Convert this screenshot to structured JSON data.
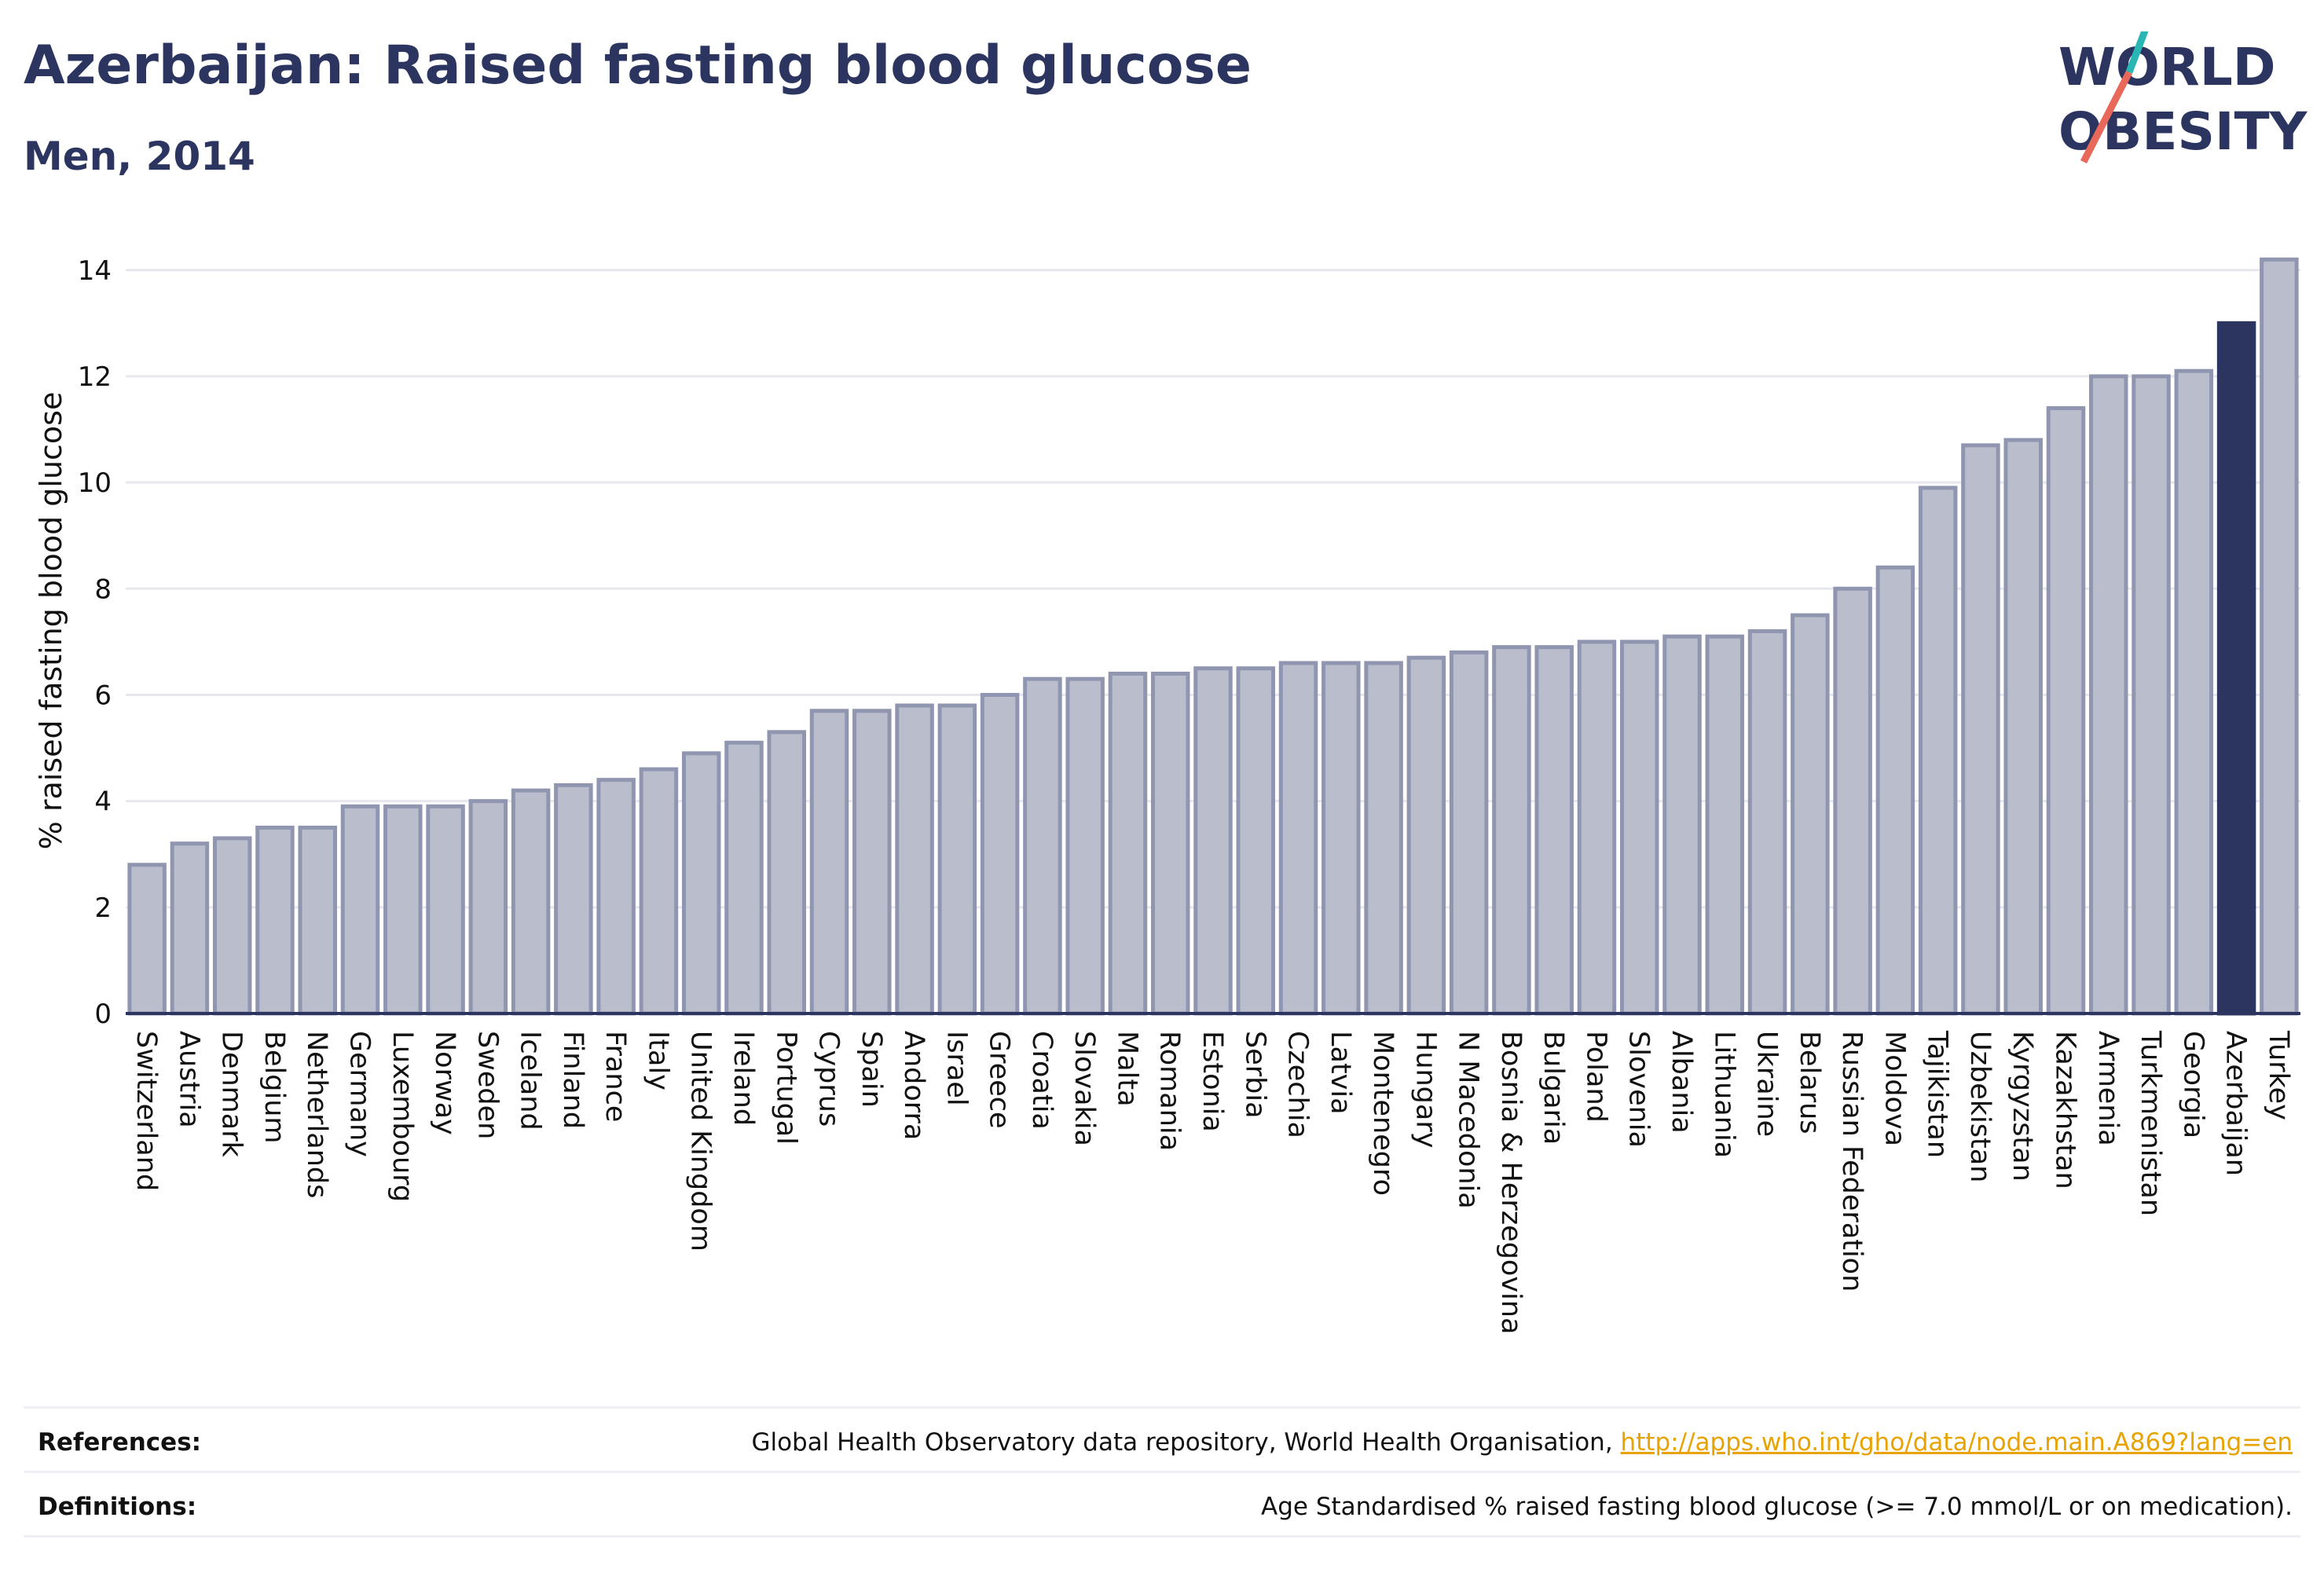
{
  "header": {
    "title": "Azerbaijan: Raised fasting blood glucose",
    "subtitle": "Men, 2014"
  },
  "logo": {
    "line1": "WORLD",
    "line2": "OBESITY"
  },
  "footer": {
    "references_label": "References:",
    "references_text": "Global Health Observatory data repository, World Health Organisation, ",
    "references_link": "http://apps.who.int/gho/data/node.main.A869?lang=en",
    "definitions_label": "Definitions:",
    "definitions_text": "Age Standardised % raised fasting blood glucose (>= 7.0 mmol/L or on medication)."
  },
  "colors": {
    "bar_fill": "#b9bdcc",
    "bar_stroke": "#9096b0",
    "highlight": "#2b3560",
    "grid": "#e6e8ee",
    "axis_line": "#2b3560",
    "logo_teal": "#2ab7b3",
    "logo_coral": "#e8685a"
  },
  "chart_data": {
    "type": "bar",
    "title": "Azerbaijan: Raised fasting blood glucose",
    "subtitle": "Men, 2014",
    "xlabel": "",
    "ylabel": "% raised fasting blood glucose",
    "ylim": [
      0,
      14.5
    ],
    "yticks": [
      0,
      2,
      4,
      6,
      8,
      10,
      12,
      14
    ],
    "grid": true,
    "highlight_category": "Azerbaijan",
    "categories": [
      "Switzerland",
      "Austria",
      "Denmark",
      "Belgium",
      "Netherlands",
      "Germany",
      "Luxembourg",
      "Norway",
      "Sweden",
      "Iceland",
      "Finland",
      "France",
      "Italy",
      "United Kingdom",
      "Ireland",
      "Portugal",
      "Cyprus",
      "Spain",
      "Andorra",
      "Israel",
      "Greece",
      "Croatia",
      "Slovakia",
      "Malta",
      "Romania",
      "Estonia",
      "Serbia",
      "Czechia",
      "Latvia",
      "Montenegro",
      "Hungary",
      "N Macedonia",
      "Bosnia & Herzegovina",
      "Bulgaria",
      "Poland",
      "Slovenia",
      "Albania",
      "Lithuania",
      "Ukraine",
      "Belarus",
      "Russian Federation",
      "Moldova",
      "Tajikistan",
      "Uzbekistan",
      "Kyrgyzstan",
      "Kazakhstan",
      "Armenia",
      "Turkmenistan",
      "Georgia",
      "Azerbaijan",
      "Turkey"
    ],
    "values": [
      2.8,
      3.2,
      3.3,
      3.5,
      3.5,
      3.9,
      3.9,
      3.9,
      4.0,
      4.2,
      4.3,
      4.4,
      4.6,
      4.9,
      5.1,
      5.3,
      5.7,
      5.7,
      5.8,
      5.8,
      6.0,
      6.3,
      6.3,
      6.4,
      6.4,
      6.5,
      6.5,
      6.6,
      6.6,
      6.6,
      6.7,
      6.8,
      6.9,
      6.9,
      7.0,
      7.0,
      7.1,
      7.1,
      7.2,
      7.5,
      8.0,
      8.4,
      9.9,
      10.7,
      10.8,
      11.4,
      12.0,
      12.0,
      12.1,
      13.0,
      14.2
    ]
  }
}
